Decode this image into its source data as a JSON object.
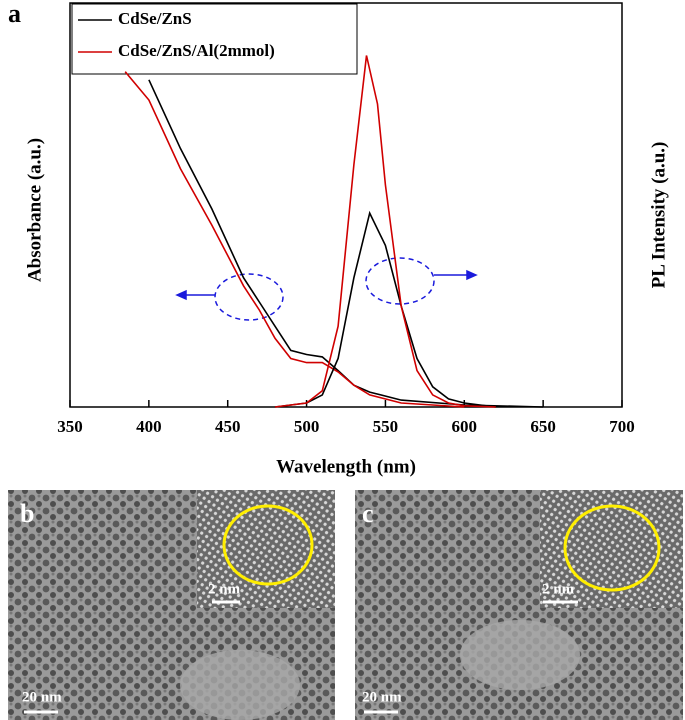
{
  "chart_data": {
    "type": "line",
    "panel_label": "a",
    "x_label": "Wavelength (nm)",
    "y_label": "Absorbance (a.u.)",
    "y2_label": "PL Intensity (a.u.)",
    "xlim": [
      350,
      700
    ],
    "xticks": [
      350,
      400,
      450,
      500,
      550,
      600,
      650,
      700
    ],
    "ylim": [
      0,
      100
    ],
    "y2lim": [
      0,
      100
    ],
    "legend": [
      {
        "name": "CdSe/ZnS",
        "color": "#000000"
      },
      {
        "name": "CdSe/ZnS/Al(2mmol)",
        "color": "#d00000"
      }
    ],
    "series": [
      {
        "color": "#000000",
        "x": [
          400,
          420,
          440,
          460,
          470,
          480,
          490,
          500,
          510,
          520,
          530,
          540,
          560,
          600,
          650
        ],
        "values": [
          81,
          64,
          49,
          32,
          26,
          20,
          14,
          13,
          12.4,
          9,
          5.4,
          3.7,
          1.7,
          0.5,
          0
        ]
      },
      {
        "color": "#d00000",
        "x": [
          385,
          400,
          420,
          440,
          460,
          470,
          480,
          490,
          500,
          510,
          520,
          530,
          540,
          560,
          600
        ],
        "values": [
          83,
          76,
          59,
          45,
          30,
          24,
          17,
          12,
          11,
          11,
          8.7,
          5.4,
          3,
          1,
          0
        ]
      },
      {
        "color": "#000000",
        "axis": "y2",
        "x": [
          480,
          500,
          510,
          520,
          530,
          540,
          550,
          560,
          570,
          580,
          590,
          600,
          620
        ],
        "values": [
          0,
          1,
          3,
          12,
          32,
          48,
          40,
          25,
          12,
          5,
          2,
          1,
          0
        ]
      },
      {
        "color": "#d00000",
        "axis": "y2",
        "x": [
          480,
          500,
          510,
          520,
          530,
          538,
          545,
          550,
          560,
          570,
          580,
          590,
          600,
          620
        ],
        "values": [
          0,
          1,
          4,
          20,
          60,
          87,
          75,
          55,
          25,
          9,
          3,
          1,
          0.3,
          0
        ]
      }
    ]
  },
  "images": [
    {
      "panel_label": "b",
      "scale_bar": "20 nm",
      "inset_scale_bar": "2 nm"
    },
    {
      "panel_label": "c",
      "scale_bar": "20 nm",
      "inset_scale_bar": "2 nm"
    }
  ]
}
